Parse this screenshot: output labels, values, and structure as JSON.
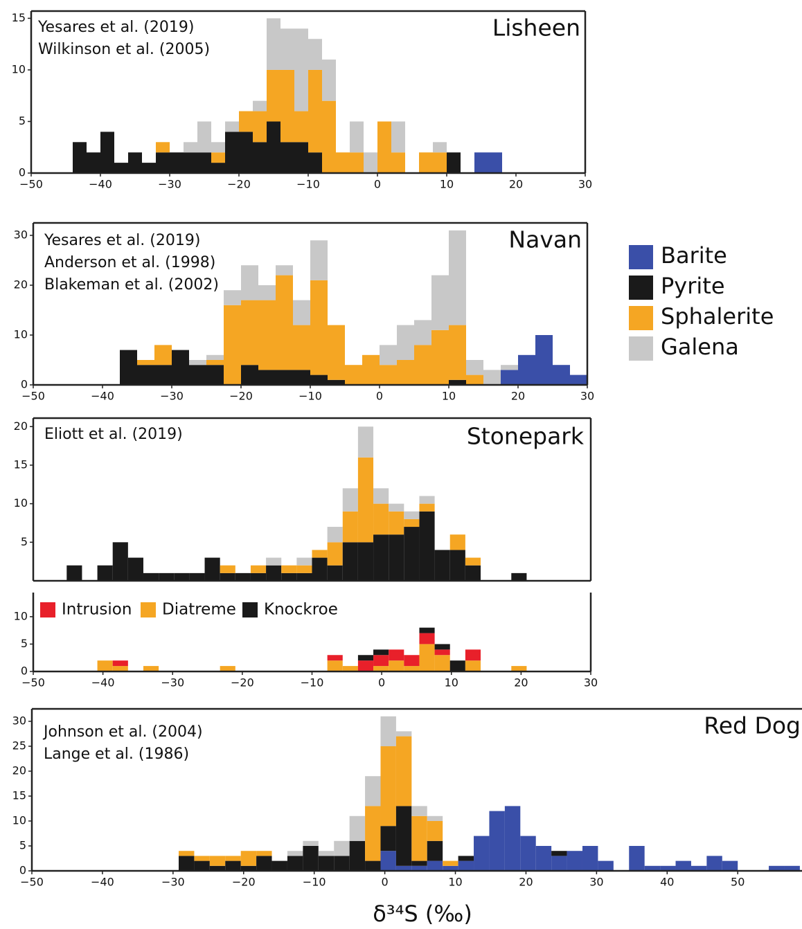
{
  "chart_data": [
    {
      "type": "histogram",
      "title": "Lisheen",
      "annotations": [
        "Yesares et al. (2019)",
        "Wilkinson et al. (2005)"
      ],
      "bins": [
        -44,
        -42,
        -40,
        -38,
        -36,
        -34,
        -32,
        -30,
        -28,
        -26,
        -24,
        -22,
        -20,
        -18,
        -16,
        -14,
        -12,
        -10,
        -8,
        -6,
        -4,
        -2,
        0,
        2,
        4,
        6,
        8,
        10,
        12,
        14,
        16,
        18
      ],
      "series": [
        {
          "name": "Barite",
          "color": "#3a4fa8",
          "values": [
            0,
            0,
            0,
            0,
            0,
            0,
            0,
            0,
            0,
            0,
            0,
            0,
            0,
            0,
            0,
            0,
            0,
            0,
            0,
            0,
            0,
            0,
            0,
            0,
            0,
            0,
            0,
            0,
            0,
            2,
            2
          ]
        },
        {
          "name": "Pyrite",
          "color": "#1a1a1a",
          "values": [
            3,
            2,
            4,
            1,
            2,
            1,
            2,
            2,
            2,
            2,
            1,
            4,
            4,
            3,
            5,
            3,
            3,
            2,
            0,
            0,
            0,
            0,
            0,
            0,
            0,
            0,
            0,
            2,
            0,
            0,
            0
          ]
        },
        {
          "name": "Sphalerite",
          "color": "#f5a623",
          "values": [
            0,
            0,
            0,
            0,
            0,
            0,
            1,
            0,
            0,
            0,
            1,
            0,
            2,
            3,
            5,
            7,
            3,
            8,
            7,
            2,
            2,
            0,
            5,
            2,
            0,
            2,
            2,
            0,
            0,
            0,
            0
          ]
        },
        {
          "name": "Galena",
          "color": "#c8c8c8",
          "values": [
            0,
            0,
            0,
            0,
            0,
            0,
            0,
            0,
            1,
            3,
            1,
            1,
            0,
            1,
            5,
            4,
            8,
            3,
            4,
            0,
            3,
            2,
            0,
            3,
            0,
            0,
            1,
            0,
            0,
            0,
            0
          ]
        }
      ],
      "xlim": [
        -50,
        30
      ],
      "ylim": [
        0,
        15.7
      ],
      "xticks": [
        {
          "value": -50,
          "label": "−50"
        },
        {
          "value": -40,
          "label": "−40"
        },
        {
          "value": -30,
          "label": "−30"
        },
        {
          "value": -20,
          "label": "−20"
        },
        {
          "value": -10,
          "label": "−10"
        },
        0,
        10,
        20,
        30
      ],
      "yticks": [
        0,
        5,
        10,
        15
      ]
    },
    {
      "type": "histogram",
      "title": "Navan",
      "annotations": [
        "Yesares et al. (2019)",
        "Anderson et al. (1998)",
        "Blakeman et al. (2002)"
      ],
      "bins": [
        -37.5,
        -35,
        -32.5,
        -30,
        -27.5,
        -25,
        -22.5,
        -20,
        -17.5,
        -15,
        -12.5,
        -10,
        -7.5,
        -5,
        -2.5,
        0,
        2.5,
        5,
        7.5,
        10,
        12.5,
        15,
        17.5,
        20,
        22.5,
        25,
        27.5,
        30
      ],
      "series": [
        {
          "name": "Barite",
          "color": "#3a4fa8",
          "values": [
            0,
            0,
            0,
            0,
            0,
            0,
            0,
            0,
            0,
            0,
            0,
            0,
            0,
            0,
            0,
            0,
            0,
            0,
            0,
            0,
            0,
            0,
            3,
            6,
            10,
            4,
            2
          ]
        },
        {
          "name": "Pyrite",
          "color": "#1a1a1a",
          "values": [
            7,
            4,
            4,
            7,
            4,
            4,
            0,
            4,
            3,
            3,
            3,
            2,
            1,
            0,
            0,
            0,
            0,
            0,
            0,
            1,
            0,
            0,
            0,
            0,
            0,
            0,
            0
          ]
        },
        {
          "name": "Sphalerite",
          "color": "#f5a623",
          "values": [
            0,
            1,
            4,
            0,
            0,
            1,
            16,
            13,
            14,
            19,
            9,
            19,
            11,
            4,
            6,
            4,
            5,
            8,
            11,
            11,
            2,
            0,
            0,
            0,
            0,
            0,
            0
          ]
        },
        {
          "name": "Galena",
          "color": "#c8c8c8",
          "values": [
            0,
            0,
            0,
            0,
            1,
            1,
            3,
            7,
            3,
            2,
            5,
            8,
            0,
            0,
            0,
            4,
            7,
            5,
            11,
            19,
            3,
            3,
            1,
            0,
            0,
            0,
            0
          ]
        }
      ],
      "xlim": [
        -50,
        30
      ],
      "ylim": [
        0,
        32.5
      ],
      "xticks": [
        {
          "value": -50,
          "label": "−50"
        },
        {
          "value": -40,
          "label": "−40"
        },
        {
          "value": -30,
          "label": "−30"
        },
        {
          "value": -20,
          "label": "−20"
        },
        {
          "value": -10,
          "label": "−10"
        },
        0,
        10,
        20,
        30
      ],
      "yticks": [
        0,
        10,
        20,
        30
      ]
    },
    {
      "type": "histogram",
      "title": "Stonepark",
      "annotations": [
        "Eliott et al. (2019)"
      ],
      "bins": [
        -45.2,
        -43,
        -40.8,
        -38.6,
        -36.4,
        -34.2,
        -32,
        -29.8,
        -27.6,
        -25.4,
        -23.2,
        -21,
        -18.8,
        -16.6,
        -14.4,
        -12.2,
        -10,
        -7.8,
        -5.6,
        -3.4,
        -1.2,
        1,
        3.2,
        5.4,
        7.6,
        9.8,
        12,
        14.2,
        16.4,
        18.6,
        20.8
      ],
      "series": [
        {
          "name": "Pyrite",
          "color": "#1a1a1a",
          "values": [
            2,
            0,
            2,
            5,
            3,
            1,
            1,
            1,
            1,
            3,
            1,
            1,
            1,
            2,
            1,
            1,
            3,
            2,
            5,
            5,
            6,
            6,
            7,
            9,
            4,
            4,
            2,
            0,
            0,
            1
          ]
        },
        {
          "name": "Sphalerite",
          "color": "#f5a623",
          "values": [
            0,
            0,
            0,
            0,
            0,
            0,
            0,
            0,
            0,
            0,
            1,
            0,
            1,
            0,
            1,
            1,
            1,
            3,
            4,
            11,
            4,
            3,
            1,
            1,
            0,
            2,
            1,
            0,
            0,
            0
          ]
        },
        {
          "name": "Galena",
          "color": "#c8c8c8",
          "values": [
            0,
            0,
            0,
            0,
            0,
            0,
            0,
            0,
            0,
            0,
            0,
            0,
            0,
            1,
            0,
            1,
            0,
            2,
            3,
            4,
            2,
            1,
            1,
            1,
            0,
            0,
            0,
            0,
            0,
            0
          ]
        }
      ],
      "xlim": [
        -50,
        30
      ],
      "ylim": [
        0,
        21.1
      ],
      "yticks": [
        5,
        10,
        15,
        20
      ]
    },
    {
      "type": "histogram",
      "bins": [
        -45.2,
        -43,
        -40.8,
        -38.6,
        -36.4,
        -34.2,
        -32,
        -29.8,
        -27.6,
        -25.4,
        -23.2,
        -21,
        -18.8,
        -16.6,
        -14.4,
        -12.2,
        -10,
        -7.8,
        -5.6,
        -3.4,
        -1.2,
        1,
        3.2,
        5.4,
        7.6,
        9.8,
        12,
        14.2,
        16.4,
        18.6,
        20.8
      ],
      "series": [
        {
          "name": "Intrusion",
          "color": "#e8202a",
          "values": [
            0,
            0,
            0,
            1,
            0,
            0,
            0,
            0,
            0,
            0,
            0,
            0,
            0,
            0,
            0,
            0,
            0,
            1,
            0,
            2,
            2,
            2,
            2,
            2,
            1,
            0,
            2,
            0,
            0,
            0
          ]
        },
        {
          "name": "Diatreme",
          "color": "#f5a623",
          "values": [
            0,
            0,
            2,
            1,
            0,
            1,
            0,
            0,
            0,
            0,
            1,
            0,
            0,
            0,
            0,
            0,
            0,
            2,
            1,
            0,
            1,
            2,
            1,
            5,
            3,
            0,
            2,
            0,
            0,
            1
          ]
        },
        {
          "name": "Knockroe",
          "color": "#1a1a1a",
          "values": [
            0,
            0,
            0,
            0,
            0,
            0,
            0,
            0,
            0,
            0,
            0,
            0,
            0,
            0,
            0,
            0,
            0,
            0,
            0,
            1,
            1,
            0,
            0,
            1,
            1,
            2,
            0,
            0,
            0,
            0
          ]
        }
      ],
      "xlim": [
        -50,
        30
      ],
      "ylim": [
        0,
        14.4
      ],
      "xticks": [
        {
          "value": -50,
          "label": "−50"
        },
        {
          "value": -40,
          "label": "−40"
        },
        {
          "value": -30,
          "label": "−30"
        },
        {
          "value": -20,
          "label": "−20"
        },
        {
          "value": -10,
          "label": "−10"
        },
        0,
        10,
        20,
        30
      ],
      "yticks": [
        0,
        5,
        10
      ]
    },
    {
      "type": "histogram",
      "title": "Red Dog",
      "annotations": [
        "Johnson et al. (2004)",
        "Lange et al. (1986)"
      ],
      "xlabel": "δ³⁴S (‰)",
      "bins": [
        -29.2,
        -27,
        -24.8,
        -22.6,
        -20.4,
        -18.2,
        -16,
        -13.8,
        -11.6,
        -9.4,
        -7.2,
        -5,
        -2.8,
        -0.6,
        1.6,
        3.8,
        6,
        8.2,
        10.4,
        12.6,
        14.8,
        17,
        19.2,
        21.4,
        23.6,
        25.8,
        28,
        30.2,
        32.4,
        34.6,
        36.8,
        39,
        41.2,
        43.4,
        45.6,
        47.8,
        50,
        52.2,
        54.4,
        56.6,
        58.8
      ],
      "series": [
        {
          "name": "Barite",
          "color": "#3a4fa8",
          "values": [
            0,
            0,
            0,
            0,
            0,
            0,
            0,
            0,
            0,
            0,
            0,
            0,
            0,
            4,
            1,
            1,
            2,
            1,
            2,
            7,
            12,
            13,
            7,
            5,
            3,
            4,
            5,
            2,
            0,
            5,
            1,
            1,
            2,
            1,
            3,
            2,
            0,
            0,
            1,
            1
          ]
        },
        {
          "name": "Pyrite",
          "color": "#1a1a1a",
          "values": [
            3,
            2,
            1,
            2,
            1,
            3,
            2,
            3,
            5,
            3,
            3,
            6,
            2,
            5,
            12,
            1,
            4,
            0,
            1,
            0,
            0,
            0,
            0,
            0,
            1,
            0,
            0,
            0,
            0,
            0,
            0,
            0,
            0,
            0,
            0,
            0,
            0,
            0,
            0,
            0
          ]
        },
        {
          "name": "Sphalerite",
          "color": "#f5a623",
          "values": [
            1,
            1,
            2,
            1,
            3,
            1,
            0,
            0,
            0,
            0,
            0,
            0,
            11,
            16,
            14,
            9,
            4,
            1,
            0,
            0,
            0,
            0,
            0,
            0,
            0,
            0,
            0,
            0,
            0,
            0,
            0,
            0,
            0,
            0,
            0,
            0,
            0,
            0,
            0,
            0
          ]
        },
        {
          "name": "Galena",
          "color": "#c8c8c8",
          "values": [
            0,
            0,
            0,
            0,
            0,
            0,
            0,
            1,
            1,
            1,
            3,
            5,
            6,
            6,
            1,
            2,
            1,
            0,
            0,
            0,
            0,
            0,
            0,
            0,
            0,
            0,
            0,
            0,
            0,
            0,
            0,
            0,
            0,
            0,
            0,
            0,
            0,
            0,
            0,
            0
          ]
        }
      ],
      "xlim": [
        -50,
        59.3
      ],
      "ylim": [
        0,
        32.5
      ],
      "xticks": [
        {
          "value": -50,
          "label": "−50"
        },
        {
          "value": -40,
          "label": "−40"
        },
        {
          "value": -30,
          "label": "−30"
        },
        {
          "value": -20,
          "label": "−20"
        },
        {
          "value": -10,
          "label": "−10"
        },
        0,
        10,
        20,
        30,
        40,
        50
      ],
      "yticks": [
        0,
        5,
        10,
        15,
        20,
        25,
        30
      ]
    }
  ]
}
